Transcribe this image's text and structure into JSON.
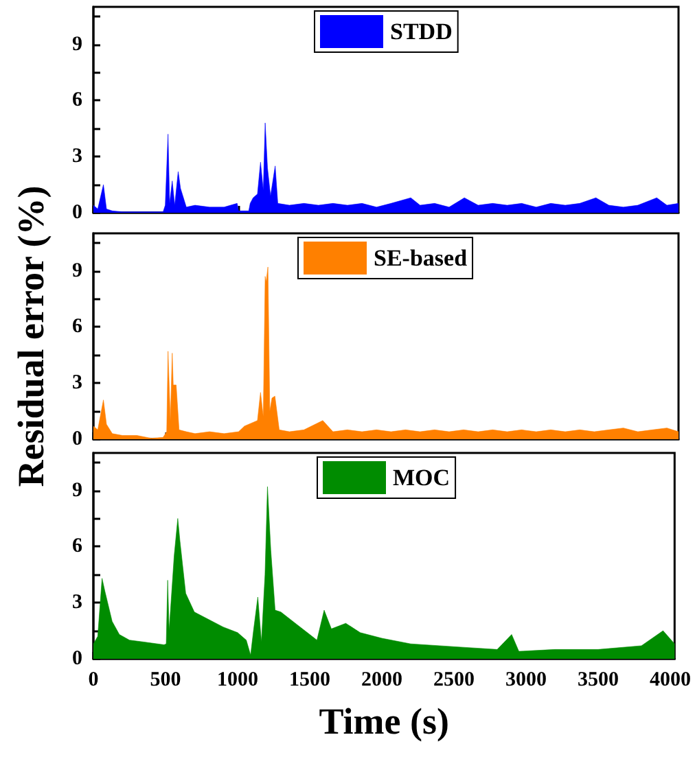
{
  "chart_data": [
    {
      "type": "area",
      "tick_labels": "y",
      "legend": "top",
      "xlim": [
        0,
        4030
      ],
      "xticks": [
        0,
        500,
        1000,
        1500,
        2000,
        2500,
        3000,
        3500,
        4000
      ],
      "ylim": [
        0,
        11
      ],
      "yticks": [
        0,
        {
          "value": 1.5,
          "label": null
        },
        3,
        {
          "value": 4.5,
          "label": null
        },
        6,
        {
          "value": 7.5,
          "label": null
        },
        9,
        {
          "value": 10.5,
          "label": null
        }
      ],
      "x": [
        0,
        30,
        69,
        90,
        130,
        200,
        300,
        400,
        480,
        495,
        514,
        525,
        543,
        560,
        584,
        600,
        640,
        700,
        800,
        900,
        990,
        1000,
        1070,
        1080,
        1100,
        1130,
        1151,
        1170,
        1183,
        1199,
        1220,
        1252,
        1270,
        1350,
        1450,
        1550,
        1650,
        1750,
        1850,
        1950,
        2050,
        2186,
        2250,
        2350,
        2450,
        2555,
        2650,
        2750,
        2850,
        2950,
        3050,
        3150,
        3250,
        3350,
        3461,
        3550,
        3650,
        3750,
        3880,
        3950,
        4030
      ],
      "series": [
        {
          "name": "STDD",
          "color": "#0000ff",
          "values": [
            0.4,
            0.2,
            1.5,
            0.2,
            0.1,
            0.05,
            0.05,
            0.05,
            0.05,
            0.4,
            4.2,
            0.5,
            1.7,
            0.4,
            2.2,
            1.3,
            0.3,
            0.4,
            0.3,
            0.3,
            0.5,
            0.1,
            0.1,
            0.5,
            0.8,
            1.0,
            2.7,
            1.2,
            4.8,
            2.4,
            0.9,
            2.5,
            0.5,
            0.4,
            0.5,
            0.4,
            0.5,
            0.4,
            0.5,
            0.3,
            0.5,
            0.8,
            0.4,
            0.5,
            0.3,
            0.8,
            0.4,
            0.5,
            0.4,
            0.5,
            0.3,
            0.5,
            0.4,
            0.5,
            0.8,
            0.4,
            0.3,
            0.4,
            0.8,
            0.4,
            0.5
          ]
        }
      ]
    },
    {
      "type": "area",
      "tick_labels": "y",
      "legend": "top",
      "ylabel": "Residual error (%)",
      "xlim": [
        0,
        4030
      ],
      "xticks": [
        0,
        500,
        1000,
        1500,
        2000,
        2500,
        3000,
        3500,
        4000
      ],
      "ylim": [
        0,
        11
      ],
      "yticks": [
        0,
        {
          "value": 1.5,
          "label": null
        },
        3,
        {
          "value": 4.5,
          "label": null
        },
        6,
        {
          "value": 7.5,
          "label": null
        },
        9,
        {
          "value": 10.5,
          "label": null
        }
      ],
      "x": [
        0,
        30,
        69,
        90,
        130,
        200,
        300,
        400,
        480,
        505,
        514,
        530,
        543,
        550,
        570,
        590,
        640,
        700,
        800,
        900,
        1000,
        1040,
        1100,
        1130,
        1151,
        1170,
        1183,
        1190,
        1202,
        1215,
        1230,
        1250,
        1280,
        1350,
        1450,
        1580,
        1650,
        1750,
        1850,
        1950,
        2050,
        2150,
        2250,
        2350,
        2450,
        2550,
        2650,
        2750,
        2850,
        2950,
        3050,
        3150,
        3250,
        3350,
        3450,
        3550,
        3650,
        3750,
        3850,
        3950,
        4030
      ],
      "series": [
        {
          "name": "SE-based",
          "color": "#ff8000",
          "values": [
            0.7,
            0.5,
            2.1,
            0.8,
            0.3,
            0.2,
            0.2,
            0.05,
            0.1,
            0.4,
            4.7,
            1.0,
            4.6,
            2.9,
            2.9,
            0.5,
            0.4,
            0.3,
            0.4,
            0.3,
            0.4,
            0.7,
            0.9,
            1.0,
            2.5,
            1.2,
            8.7,
            8.4,
            9.2,
            1.5,
            2.2,
            2.3,
            0.5,
            0.4,
            0.5,
            1.0,
            0.4,
            0.5,
            0.4,
            0.5,
            0.4,
            0.5,
            0.4,
            0.5,
            0.4,
            0.5,
            0.4,
            0.5,
            0.4,
            0.5,
            0.4,
            0.5,
            0.4,
            0.5,
            0.4,
            0.5,
            0.6,
            0.4,
            0.5,
            0.6,
            0.4
          ]
        }
      ]
    },
    {
      "type": "area",
      "legend": "top",
      "xlabel": "Time (s)",
      "xlim": [
        0,
        4030
      ],
      "xticks": [
        0,
        500,
        1000,
        1500,
        2000,
        2500,
        3000,
        3500,
        4000
      ],
      "ylim": [
        0,
        11
      ],
      "yticks": [
        0,
        {
          "value": 1.5,
          "label": null
        },
        3,
        {
          "value": 4.5,
          "label": null
        },
        6,
        {
          "value": 7.5,
          "label": null
        },
        9,
        {
          "value": 10.5,
          "label": null
        }
      ],
      "x": [
        0,
        30,
        60,
        80,
        130,
        180,
        250,
        350,
        490,
        505,
        515,
        525,
        560,
        585,
        600,
        640,
        700,
        800,
        900,
        1000,
        1060,
        1090,
        1110,
        1140,
        1165,
        1190,
        1207,
        1230,
        1260,
        1300,
        1400,
        1500,
        1550,
        1600,
        1650,
        1750,
        1850,
        2000,
        2200,
        2400,
        2600,
        2800,
        2900,
        2950,
        3200,
        3500,
        3800,
        3950,
        4030
      ],
      "series": [
        {
          "name": "MOC",
          "color": "#008c00",
          "values": [
            0.8,
            1.2,
            4.3,
            3.6,
            2.0,
            1.3,
            1.0,
            0.9,
            0.75,
            0.8,
            4.2,
            1.5,
            5.5,
            7.5,
            6.3,
            3.5,
            2.5,
            2.1,
            1.7,
            1.4,
            1.0,
            0.2,
            1.5,
            3.3,
            0.9,
            4.5,
            9.2,
            5.8,
            2.6,
            2.5,
            1.9,
            1.3,
            1.0,
            2.6,
            1.6,
            1.9,
            1.4,
            1.1,
            0.8,
            0.7,
            0.6,
            0.5,
            1.3,
            0.4,
            0.5,
            0.5,
            0.7,
            1.5,
            0.8
          ]
        }
      ]
    }
  ]
}
